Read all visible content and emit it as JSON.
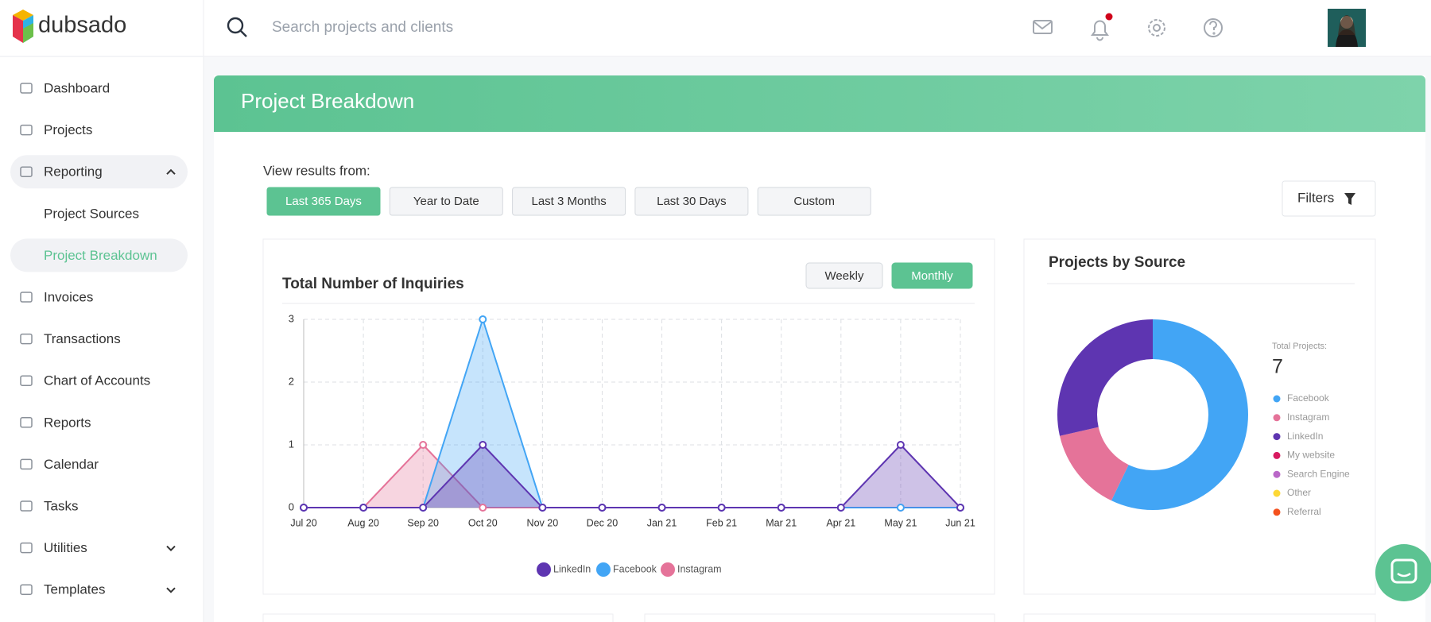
{
  "brand": "dubsado",
  "search": {
    "placeholder": "Search projects and clients"
  },
  "menu": [
    {
      "label": "Dashboard"
    },
    {
      "label": "Projects"
    },
    {
      "label": "Reporting",
      "chevron": "up",
      "open": true
    },
    {
      "label": "Project Sources",
      "sub": true
    },
    {
      "label": "Project Breakdown",
      "sub": true,
      "active": true
    },
    {
      "label": "Invoices"
    },
    {
      "label": "Transactions"
    },
    {
      "label": "Chart of Accounts"
    },
    {
      "label": "Reports"
    },
    {
      "label": "Calendar"
    },
    {
      "label": "Tasks"
    },
    {
      "label": "Utilities",
      "chevron": "down"
    },
    {
      "label": "Templates",
      "chevron": "down"
    }
  ],
  "page": {
    "title": "Project Breakdown",
    "range_label": "View results from:",
    "ranges": [
      "Last 365 Days",
      "Year to Date",
      "Last 3 Months",
      "Last 30 Days",
      "Custom"
    ],
    "active_range": 0,
    "filters": "Filters"
  },
  "chart_data": [
    {
      "type": "line",
      "title": "Total Number of Inquiries",
      "toggles": [
        "Weekly",
        "Monthly"
      ],
      "active_toggle": 1,
      "categories": [
        "Jul 20",
        "Aug 20",
        "Sep 20",
        "Oct 20",
        "Nov 20",
        "Dec 20",
        "Jan 21",
        "Feb 21",
        "Mar 21",
        "Apr 21",
        "May 21",
        "Jun 21"
      ],
      "series": [
        {
          "name": "LinkedIn",
          "color": "#5e35b1",
          "values": [
            0,
            0,
            0,
            1,
            0,
            0,
            0,
            0,
            0,
            0,
            1,
            0
          ]
        },
        {
          "name": "Facebook",
          "color": "#42a5f5",
          "values": [
            0,
            0,
            0,
            3,
            0,
            0,
            0,
            0,
            0,
            0,
            0,
            0
          ]
        },
        {
          "name": "Instagram",
          "color": "#e57399",
          "values": [
            0,
            0,
            1,
            0,
            0,
            0,
            0,
            0,
            0,
            0,
            0,
            0
          ]
        }
      ],
      "ylim": [
        0,
        3
      ],
      "yticks": [
        0,
        1,
        2,
        3
      ],
      "grid": true
    },
    {
      "type": "donut",
      "title": "Projects by Source",
      "total_label": "Total Projects:",
      "total": 7,
      "categories": [
        "Facebook",
        "Instagram",
        "LinkedIn",
        "My website",
        "Search Engine",
        "Other",
        "Referral"
      ],
      "values": [
        4,
        1,
        2,
        0,
        0,
        0,
        0
      ],
      "colors": [
        "#42a5f5",
        "#e57399",
        "#5e35b1",
        "#d81b60",
        "#ba68c8",
        "#fdd835",
        "#f4511e"
      ]
    }
  ]
}
